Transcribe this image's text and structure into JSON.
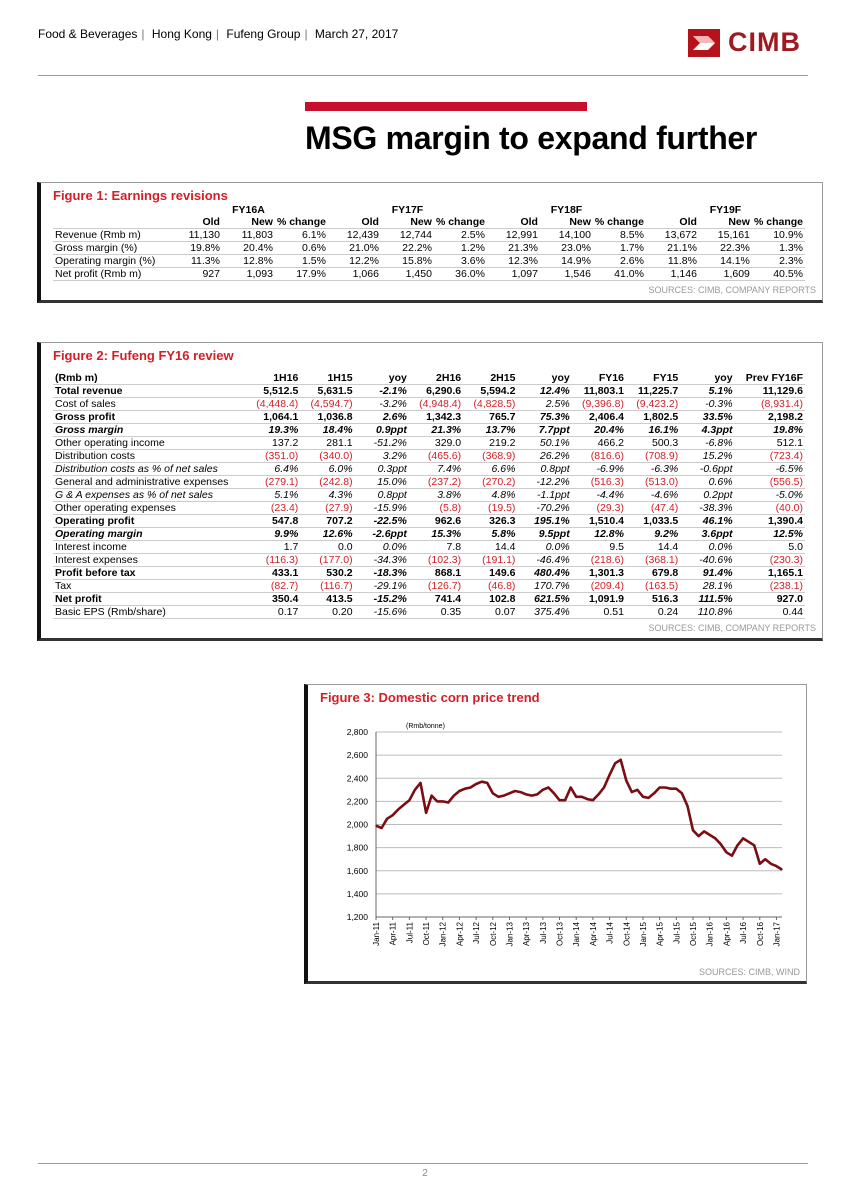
{
  "header": {
    "breadcrumb": [
      "Food & Beverages",
      "Hong Kong",
      "Fufeng Group",
      "March 27, 2017"
    ],
    "logo_text": "CIMB"
  },
  "title": "MSG margin to expand further",
  "colors": {
    "accent": "#d31f26",
    "brand": "#9e1a20",
    "line": "#7b0d12"
  },
  "figure1": {
    "title": "Figure 1: Earnings revisions",
    "years": [
      "FY16A",
      "FY17F",
      "FY18F",
      "FY19F"
    ],
    "subheaders": [
      "Old",
      "New",
      "% change",
      "Old",
      "New",
      "% change",
      "Old",
      "New",
      "% change",
      "Old",
      "New",
      "% change"
    ],
    "rows": [
      {
        "label": "Revenue (Rmb m)",
        "values": [
          "11,130",
          "11,803",
          "6.1%",
          "12,439",
          "12,744",
          "2.5%",
          "12,991",
          "14,100",
          "8.5%",
          "13,672",
          "15,161",
          "10.9%"
        ]
      },
      {
        "label": "Gross margin (%)",
        "values": [
          "19.8%",
          "20.4%",
          "0.6%",
          "21.0%",
          "22.2%",
          "1.2%",
          "21.3%",
          "23.0%",
          "1.7%",
          "21.1%",
          "22.3%",
          "1.3%"
        ]
      },
      {
        "label": "Operating margin (%)",
        "values": [
          "11.3%",
          "12.8%",
          "1.5%",
          "12.2%",
          "15.8%",
          "3.6%",
          "12.3%",
          "14.9%",
          "2.6%",
          "11.8%",
          "14.1%",
          "2.3%"
        ]
      },
      {
        "label": "Net profit (Rmb m)",
        "values": [
          "927",
          "1,093",
          "17.9%",
          "1,066",
          "1,450",
          "36.0%",
          "1,097",
          "1,546",
          "41.0%",
          "1,146",
          "1,609",
          "40.5%"
        ]
      }
    ],
    "source": "SOURCES: CIMB, COMPANY REPORTS"
  },
  "figure2": {
    "title": "Figure 2: Fufeng FY16 review",
    "headers": [
      "(Rmb m)",
      "1H16",
      "1H15",
      "yoy",
      "2H16",
      "2H15",
      "yoy",
      "FY16",
      "FY15",
      "yoy",
      "Prev FY16F"
    ],
    "rows": [
      {
        "label": "Total revenue",
        "style": "b",
        "values": [
          "5,512.5",
          "5,631.5",
          "-2.1%",
          "6,290.6",
          "5,594.2",
          "12.4%",
          "11,803.1",
          "11,225.7",
          "5.1%",
          "11,129.6"
        ]
      },
      {
        "label": "Cost of sales",
        "style": "",
        "values": [
          "(4,448.4)",
          "(4,594.7)",
          "-3.2%",
          "(4,948.4)",
          "(4,828.5)",
          "2.5%",
          "(9,396.8)",
          "(9,423.2)",
          "-0.3%",
          "(8,931.4)"
        ]
      },
      {
        "label": "Gross profit",
        "style": "b",
        "values": [
          "1,064.1",
          "1,036.8",
          "2.6%",
          "1,342.3",
          "765.7",
          "75.3%",
          "2,406.4",
          "1,802.5",
          "33.5%",
          "2,198.2"
        ]
      },
      {
        "label": "Gross margin",
        "style": "b it",
        "values": [
          "19.3%",
          "18.4%",
          "0.9ppt",
          "21.3%",
          "13.7%",
          "7.7ppt",
          "20.4%",
          "16.1%",
          "4.3ppt",
          "19.8%"
        ]
      },
      {
        "label": "Other operating income",
        "style": "",
        "values": [
          "137.2",
          "281.1",
          "-51.2%",
          "329.0",
          "219.2",
          "50.1%",
          "466.2",
          "500.3",
          "-6.8%",
          "512.1"
        ]
      },
      {
        "label": "Distribution costs",
        "style": "",
        "values": [
          "(351.0)",
          "(340.0)",
          "3.2%",
          "(465.6)",
          "(368.9)",
          "26.2%",
          "(816.6)",
          "(708.9)",
          "15.2%",
          "(723.4)"
        ]
      },
      {
        "label": "Distribution costs as % of net sales",
        "style": "it",
        "values": [
          "6.4%",
          "6.0%",
          "0.3ppt",
          "7.4%",
          "6.6%",
          "0.8ppt",
          "-6.9%",
          "-6.3%",
          "-0.6ppt",
          "-6.5%"
        ]
      },
      {
        "label": "General and administrative expenses",
        "style": "",
        "values": [
          "(279.1)",
          "(242.8)",
          "15.0%",
          "(237.2)",
          "(270.2)",
          "-12.2%",
          "(516.3)",
          "(513.0)",
          "0.6%",
          "(556.5)"
        ]
      },
      {
        "label": "G & A expenses as % of net sales",
        "style": "it",
        "values": [
          "5.1%",
          "4.3%",
          "0.8ppt",
          "3.8%",
          "4.8%",
          "-1.1ppt",
          "-4.4%",
          "-4.6%",
          "0.2ppt",
          "-5.0%"
        ]
      },
      {
        "label": "Other operating expenses",
        "style": "",
        "values": [
          "(23.4)",
          "(27.9)",
          "-15.9%",
          "(5.8)",
          "(19.5)",
          "-70.2%",
          "(29.3)",
          "(47.4)",
          "-38.3%",
          "(40.0)"
        ]
      },
      {
        "label": "Operating profit",
        "style": "b",
        "values": [
          "547.8",
          "707.2",
          "-22.5%",
          "962.6",
          "326.3",
          "195.1%",
          "1,510.4",
          "1,033.5",
          "46.1%",
          "1,390.4"
        ]
      },
      {
        "label": "Operating margin",
        "style": "b it",
        "values": [
          "9.9%",
          "12.6%",
          "-2.6ppt",
          "15.3%",
          "5.8%",
          "9.5ppt",
          "12.8%",
          "9.2%",
          "3.6ppt",
          "12.5%"
        ]
      },
      {
        "label": "Interest income",
        "style": "",
        "values": [
          "1.7",
          "0.0",
          "0.0%",
          "7.8",
          "14.4",
          "0.0%",
          "9.5",
          "14.4",
          "0.0%",
          "5.0"
        ]
      },
      {
        "label": "Interest expenses",
        "style": "",
        "values": [
          "(116.3)",
          "(177.0)",
          "-34.3%",
          "(102.3)",
          "(191.1)",
          "-46.4%",
          "(218.6)",
          "(368.1)",
          "-40.6%",
          "(230.3)"
        ]
      },
      {
        "label": "Profit before tax",
        "style": "b",
        "values": [
          "433.1",
          "530.2",
          "-18.3%",
          "868.1",
          "149.6",
          "480.4%",
          "1,301.3",
          "679.8",
          "91.4%",
          "1,165.1"
        ]
      },
      {
        "label": "Tax",
        "style": "",
        "values": [
          "(82.7)",
          "(116.7)",
          "-29.1%",
          "(126.7)",
          "(46.8)",
          "170.7%",
          "(209.4)",
          "(163.5)",
          "28.1%",
          "(238.1)"
        ]
      },
      {
        "label": "Net profit",
        "style": "b",
        "values": [
          "350.4",
          "413.5",
          "-15.2%",
          "741.4",
          "102.8",
          "621.5%",
          "1,091.9",
          "516.3",
          "111.5%",
          "927.0"
        ]
      },
      {
        "label": "Basic EPS (Rmb/share)",
        "style": "",
        "values": [
          "0.17",
          "0.20",
          "-15.6%",
          "0.35",
          "0.07",
          "375.4%",
          "0.51",
          "0.24",
          "110.8%",
          "0.44"
        ]
      }
    ],
    "source": "SOURCES: CIMB, COMPANY REPORTS"
  },
  "figure3": {
    "title": "Figure 3: Domestic corn price trend",
    "source": "SOURCES: CIMB, WIND"
  },
  "chart_data": {
    "type": "line",
    "title": "Figure 3: Domestic corn price trend",
    "ylabel": "(Rmb/tonne)",
    "ylim": [
      1200,
      2800
    ],
    "yticks": [
      1200,
      1400,
      1600,
      1800,
      2000,
      2200,
      2400,
      2600,
      2800
    ],
    "ytick_labels": [
      "1,200",
      "1,400",
      "1,600",
      "1,800",
      "2,000",
      "2,200",
      "2,400",
      "2,600",
      "2,800"
    ],
    "xtick_labels": [
      "Jan-11",
      "Apr-11",
      "Jul-11",
      "Oct-11",
      "Jan-12",
      "Apr-12",
      "Jul-12",
      "Oct-12",
      "Jan-13",
      "Apr-13",
      "Jul-13",
      "Oct-13",
      "Jan-14",
      "Apr-14",
      "Jul-14",
      "Oct-14",
      "Jan-15",
      "Apr-15",
      "Jul-15",
      "Oct-15",
      "Jan-16",
      "Apr-16",
      "Jul-16",
      "Oct-16",
      "Jan-17"
    ],
    "grid": true,
    "x_start": "Jan-11",
    "x_frequency": "monthly",
    "values": [
      1990,
      1970,
      2050,
      2080,
      2130,
      2170,
      2210,
      2300,
      2360,
      2100,
      2250,
      2200,
      2200,
      2190,
      2250,
      2290,
      2310,
      2320,
      2350,
      2370,
      2360,
      2270,
      2240,
      2250,
      2270,
      2290,
      2280,
      2260,
      2250,
      2260,
      2300,
      2320,
      2270,
      2210,
      2210,
      2320,
      2240,
      2240,
      2220,
      2210,
      2260,
      2320,
      2430,
      2530,
      2560,
      2380,
      2280,
      2300,
      2240,
      2230,
      2270,
      2320,
      2320,
      2310,
      2310,
      2270,
      2160,
      1950,
      1900,
      1940,
      1910,
      1880,
      1830,
      1760,
      1730,
      1820,
      1880,
      1850,
      1820,
      1660,
      1700,
      1660,
      1640,
      1610
    ]
  },
  "footer": {
    "page": "2"
  }
}
